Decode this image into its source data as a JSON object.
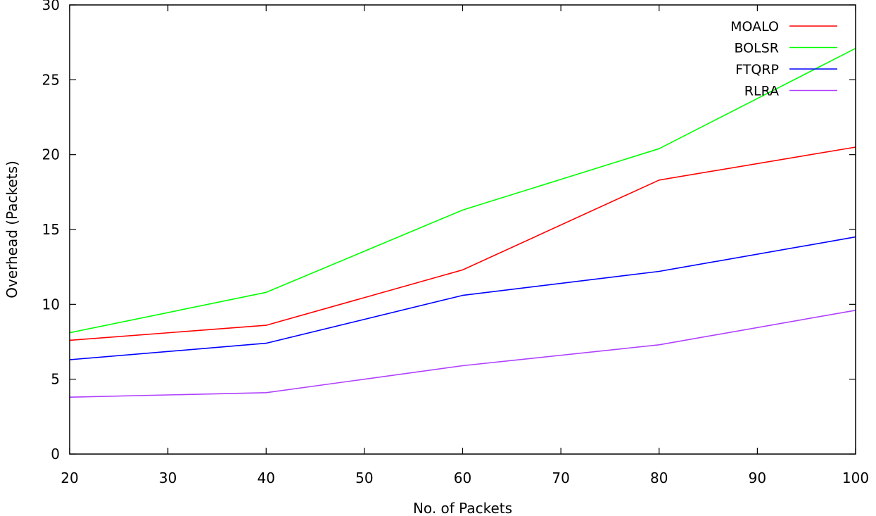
{
  "chart_data": {
    "type": "line",
    "title": "",
    "xlabel": "No. of Packets",
    "ylabel": "Overhead (Packets)",
    "xlim": [
      20,
      100
    ],
    "ylim": [
      0,
      30
    ],
    "xticks": [
      20,
      30,
      40,
      50,
      60,
      70,
      80,
      90,
      100
    ],
    "yticks": [
      0,
      5,
      10,
      15,
      20,
      25,
      30
    ],
    "grid": false,
    "legend_position": "top-right",
    "x": [
      20,
      40,
      60,
      80,
      100
    ],
    "series": [
      {
        "name": "MOALO",
        "color": "#ff0000",
        "values": [
          7.6,
          8.6,
          12.3,
          18.3,
          20.5
        ]
      },
      {
        "name": "BOLSR",
        "color": "#00ff00",
        "values": [
          8.1,
          10.8,
          16.3,
          20.4,
          27.1
        ]
      },
      {
        "name": "FTQRP",
        "color": "#0000ff",
        "values": [
          6.3,
          7.4,
          10.6,
          12.2,
          14.5
        ]
      },
      {
        "name": "RLRA",
        "color": "#b040ff",
        "values": [
          3.8,
          4.1,
          5.9,
          7.3,
          9.6
        ]
      }
    ]
  }
}
